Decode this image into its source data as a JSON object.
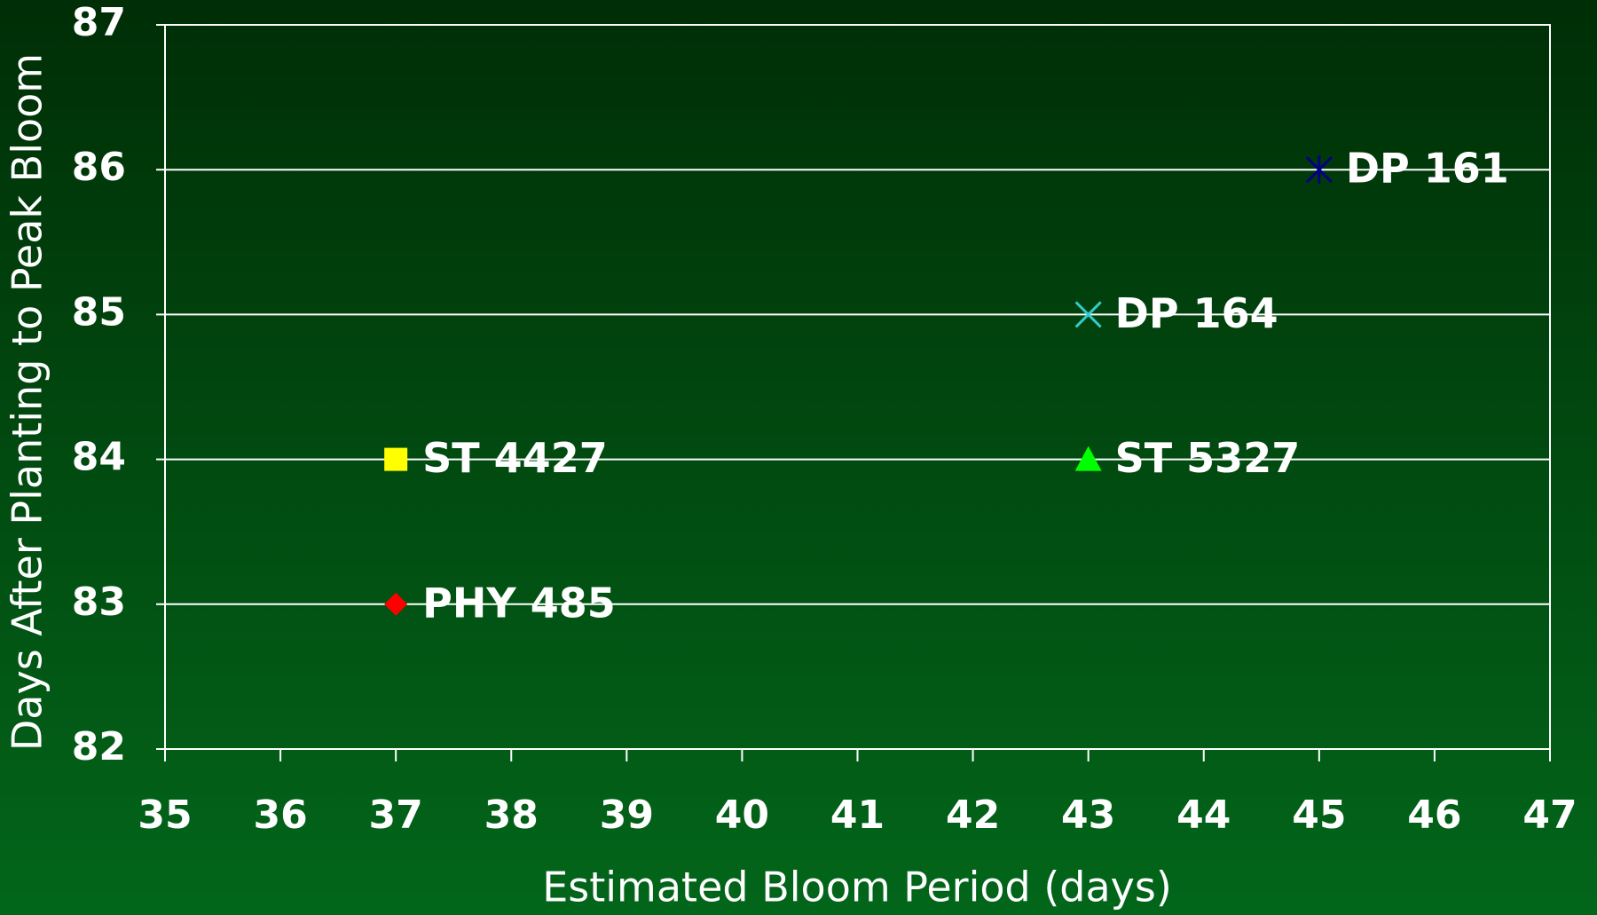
{
  "chart_data": {
    "type": "scatter",
    "x_label": "Estimated Bloom Period (days)",
    "y_label": "Days After Planting to Peak Bloom",
    "xlim": [
      35,
      47
    ],
    "xticks": [
      35,
      36,
      37,
      38,
      39,
      40,
      41,
      42,
      43,
      44,
      45,
      46,
      47
    ],
    "ylim": [
      82,
      87
    ],
    "yticks": [
      82,
      83,
      84,
      85,
      86,
      87
    ],
    "grid": true,
    "series": [
      {
        "name": "DP 161",
        "color": "#000080",
        "marker": "asterisk",
        "x": [
          45
        ],
        "values": [
          86
        ]
      },
      {
        "name": "DP 164",
        "color": "#33cccc",
        "marker": "x",
        "x": [
          43
        ],
        "values": [
          85
        ]
      },
      {
        "name": "ST 4427",
        "color": "#ffff00",
        "marker": "square",
        "x": [
          37
        ],
        "values": [
          84
        ]
      },
      {
        "name": "ST 5327",
        "color": "#00ff00",
        "marker": "triangle",
        "x": [
          43
        ],
        "values": [
          84
        ]
      },
      {
        "name": "PHY 485",
        "color": "#ff0000",
        "marker": "diamond",
        "x": [
          37
        ],
        "values": [
          83
        ]
      }
    ]
  }
}
